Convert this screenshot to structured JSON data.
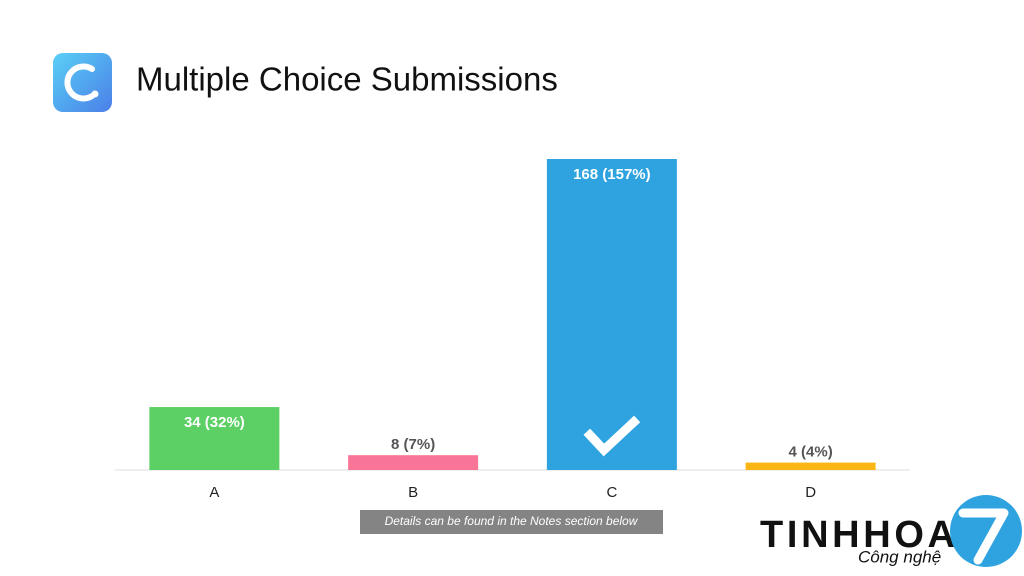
{
  "chart_data": {
    "type": "bar",
    "title": "Multiple Choice Submissions",
    "categories": [
      "A",
      "B",
      "C",
      "D"
    ],
    "values": [
      34,
      8,
      168,
      4
    ],
    "value_labels": [
      "34 (32%)",
      "8 (7%)",
      "168 (157%)",
      "4 (4%)"
    ],
    "colors": [
      "#5ccf65",
      "#f97597",
      "#2ea3e0",
      "#fbb613"
    ],
    "correct": "C"
  },
  "note": "Details can be found in the Notes section below",
  "watermark": {
    "brand": "TINHHOA",
    "tagline": "Công nghệ"
  }
}
